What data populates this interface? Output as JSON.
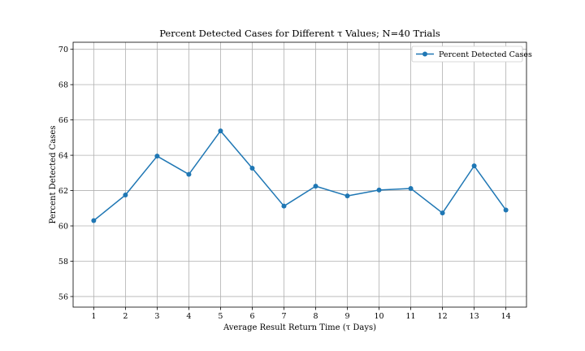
{
  "chart_data": {
    "type": "line",
    "title": "Percent Detected Cases for Different τ Values; N=40 Trials",
    "xlabel": "Average Result Return Time (τ Days)",
    "ylabel": "Percent Detected Cases",
    "xlim": [
      0.35,
      14.65
    ],
    "ylim": [
      55.4,
      70.4
    ],
    "xticks": [
      1,
      2,
      3,
      4,
      5,
      6,
      7,
      8,
      9,
      10,
      11,
      12,
      13,
      14
    ],
    "yticks": [
      56,
      58,
      60,
      62,
      64,
      66,
      68,
      70
    ],
    "grid": true,
    "legend_position": "top-right",
    "series": [
      {
        "name": "Percent Detected Cases",
        "color": "#1f77b4",
        "marker": "circle",
        "x": [
          1,
          2,
          3,
          4,
          5,
          6,
          7,
          8,
          9,
          10,
          11,
          12,
          13,
          14
        ],
        "y": [
          60.3,
          61.75,
          63.95,
          62.92,
          65.38,
          63.27,
          61.12,
          62.25,
          61.7,
          62.03,
          62.12,
          60.73,
          63.4,
          60.9
        ]
      }
    ]
  }
}
